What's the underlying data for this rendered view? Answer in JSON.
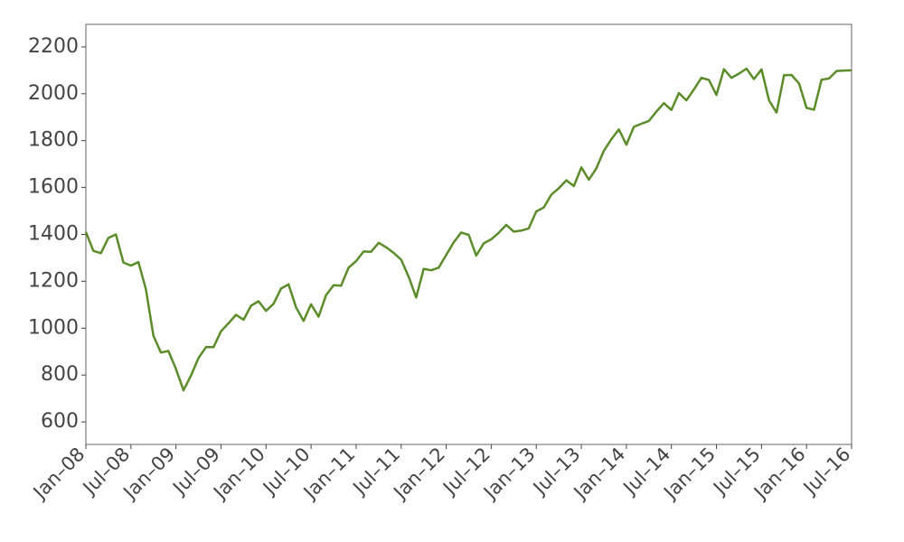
{
  "chart_data": {
    "type": "line",
    "color": "#5b8c2a",
    "xlim": [
      "2008-01",
      "2016-07"
    ],
    "ylim": [
      504,
      2296
    ],
    "yticks": [
      600,
      800,
      1000,
      1200,
      1400,
      1600,
      1800,
      2000,
      2200
    ],
    "xticks": [
      {
        "value": "2008-01",
        "label": "Jan–08"
      },
      {
        "value": "2008-07",
        "label": "Jul–08"
      },
      {
        "value": "2009-01",
        "label": "Jan–09"
      },
      {
        "value": "2009-07",
        "label": "Jul–09"
      },
      {
        "value": "2010-01",
        "label": "Jan–10"
      },
      {
        "value": "2010-07",
        "label": "Jul–10"
      },
      {
        "value": "2011-01",
        "label": "Jan–11"
      },
      {
        "value": "2011-07",
        "label": "Jul–11"
      },
      {
        "value": "2012-01",
        "label": "Jan–12"
      },
      {
        "value": "2012-07",
        "label": "Jul–12"
      },
      {
        "value": "2013-01",
        "label": "Jan–13"
      },
      {
        "value": "2013-07",
        "label": "Jul–13"
      },
      {
        "value": "2014-01",
        "label": "Jan–14"
      },
      {
        "value": "2014-07",
        "label": "Jul–14"
      },
      {
        "value": "2015-01",
        "label": "Jan–15"
      },
      {
        "value": "2015-07",
        "label": "Jul–15"
      },
      {
        "value": "2016-01",
        "label": "Jan–16"
      },
      {
        "value": "2016-07",
        "label": "Jul–16"
      }
    ],
    "x": [
      "2008-01",
      "2008-02",
      "2008-03",
      "2008-04",
      "2008-05",
      "2008-06",
      "2008-07",
      "2008-08",
      "2008-09",
      "2008-10",
      "2008-11",
      "2008-12",
      "2009-01",
      "2009-02",
      "2009-03",
      "2009-04",
      "2009-05",
      "2009-06",
      "2009-07",
      "2009-08",
      "2009-09",
      "2009-10",
      "2009-11",
      "2009-12",
      "2010-01",
      "2010-02",
      "2010-03",
      "2010-04",
      "2010-05",
      "2010-06",
      "2010-07",
      "2010-08",
      "2010-09",
      "2010-10",
      "2010-11",
      "2010-12",
      "2011-01",
      "2011-02",
      "2011-03",
      "2011-04",
      "2011-05",
      "2011-06",
      "2011-07",
      "2011-08",
      "2011-09",
      "2011-10",
      "2011-11",
      "2011-12",
      "2012-01",
      "2012-02",
      "2012-03",
      "2012-04",
      "2012-05",
      "2012-06",
      "2012-07",
      "2012-08",
      "2012-09",
      "2012-10",
      "2012-11",
      "2012-12",
      "2013-01",
      "2013-02",
      "2013-03",
      "2013-04",
      "2013-05",
      "2013-06",
      "2013-07",
      "2013-08",
      "2013-09",
      "2013-10",
      "2013-11",
      "2013-12",
      "2014-01",
      "2014-02",
      "2014-03",
      "2014-04",
      "2014-05",
      "2014-06",
      "2014-07",
      "2014-08",
      "2014-09",
      "2014-10",
      "2014-11",
      "2014-12",
      "2015-01",
      "2015-02",
      "2015-03",
      "2015-04",
      "2015-05",
      "2015-06",
      "2015-07",
      "2015-08",
      "2015-09",
      "2015-10",
      "2015-11",
      "2015-12",
      "2016-01",
      "2016-02",
      "2016-03",
      "2016-04",
      "2016-05",
      "2016-06",
      "2016-07"
    ],
    "values": [
      1410,
      1330,
      1320,
      1385,
      1400,
      1280,
      1267,
      1282,
      1166,
      968,
      896,
      903,
      826,
      735,
      798,
      873,
      919,
      919,
      987,
      1021,
      1057,
      1036,
      1096,
      1115,
      1074,
      1104,
      1169,
      1187,
      1089,
      1031,
      1102,
      1049,
      1141,
      1183,
      1181,
      1258,
      1286,
      1327,
      1326,
      1364,
      1345,
      1321,
      1292,
      1219,
      1131,
      1253,
      1247,
      1258,
      1312,
      1366,
      1408,
      1398,
      1310,
      1362,
      1379,
      1407,
      1441,
      1412,
      1416,
      1426,
      1498,
      1515,
      1569,
      1597,
      1631,
      1606,
      1686,
      1633,
      1682,
      1757,
      1806,
      1848,
      1783,
      1859,
      1872,
      1884,
      1924,
      1960,
      1931,
      2003,
      1972,
      2018,
      2068,
      2059,
      1995,
      2105,
      2068,
      2086,
      2107,
      2063,
      2104,
      1972,
      1920,
      2079,
      2080,
      2044,
      1940,
      1932,
      2060,
      2065,
      2097,
      2099,
      2100
    ]
  }
}
